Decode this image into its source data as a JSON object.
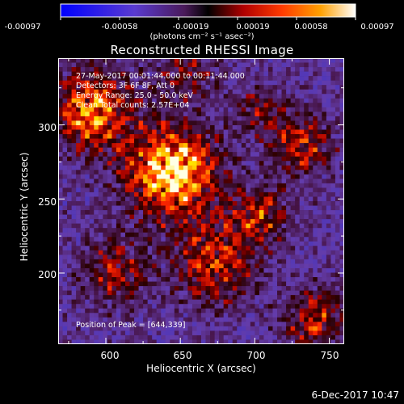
{
  "colorbar": {
    "ticks": [
      "-0.00097",
      "-0.00058",
      "-0.00019",
      "0.00019",
      "0.00058",
      "0.00097"
    ],
    "units": "(photons cm⁻² s⁻¹ asec⁻²)"
  },
  "chart_data": {
    "type": "heatmap",
    "title": "Reconstructed RHESSI Image",
    "xlabel": "Heliocentric X (arcsec)",
    "ylabel": "Heliocentric Y (arcsec)",
    "xlim": [
      568,
      760
    ],
    "ylim": [
      152,
      345
    ],
    "xticks": [
      "600",
      "650",
      "700",
      "750"
    ],
    "yticks": [
      "200",
      "250",
      "300"
    ],
    "colorscale": [
      "#0000ff",
      "#6a4cc8",
      "#8a3a8f",
      "#5a1a1a",
      "#000000",
      "#b00000",
      "#ff3000",
      "#ff9000",
      "#ffe000",
      "#ffffff"
    ],
    "value_range": [
      -0.00097,
      0.00097
    ],
    "peak_position": [
      644,
      339
    ],
    "annotations": [
      "27-May-2017 00:01:44.000 to 00:11:44.000",
      "Detectors: 3F 6F 8F, Att 0",
      "Energy Range: 25.0 - 50.0 keV",
      "Clean    Total counts: 2.57E+04"
    ],
    "peak_label": "Position of Peak = [644,339]"
  },
  "footer": {
    "date": "6-Dec-2017 10:47"
  }
}
